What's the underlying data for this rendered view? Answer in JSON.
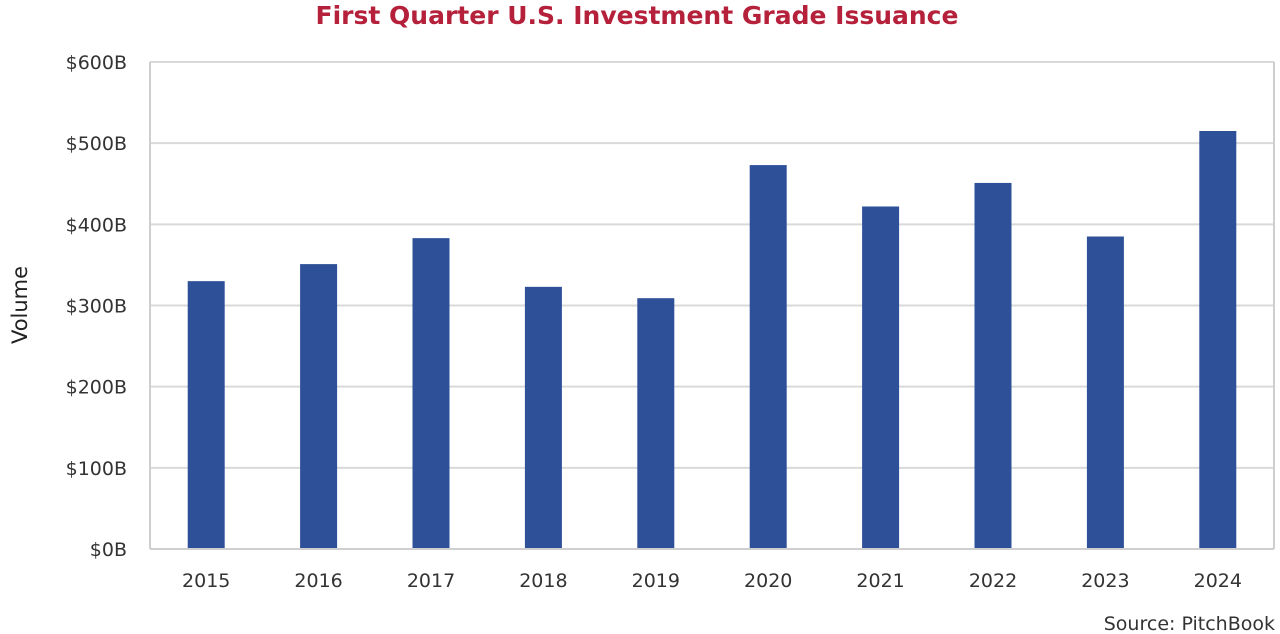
{
  "chart_data": {
    "type": "bar",
    "title": "First Quarter U.S. Investment Grade Issuance",
    "xlabel": "",
    "ylabel": "Volume",
    "categories": [
      "2015",
      "2016",
      "2017",
      "2018",
      "2019",
      "2020",
      "2021",
      "2022",
      "2023",
      "2024"
    ],
    "values": [
      330,
      351,
      383,
      323,
      309,
      473,
      422,
      451,
      385,
      515
    ],
    "value_unit": "$B",
    "ylim": [
      0,
      600
    ],
    "yticks": [
      0,
      100,
      200,
      300,
      400,
      500,
      600
    ],
    "ytick_labels": [
      "$0B",
      "$100B",
      "$200B",
      "$300B",
      "$400B",
      "$500B",
      "$600B"
    ],
    "grid": true,
    "legend": "none",
    "source": "Source: PitchBook",
    "colors": {
      "bar": "#2e5099",
      "title": "#b5203a",
      "grid": "#d9d9d9"
    }
  }
}
